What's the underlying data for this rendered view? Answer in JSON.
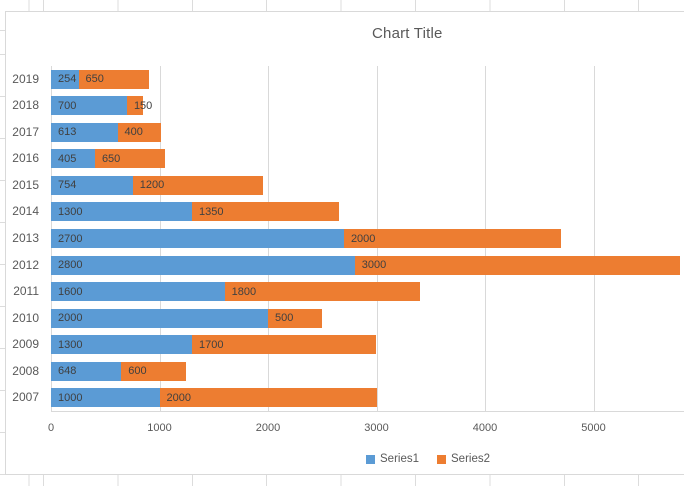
{
  "chart_data": {
    "type": "bar",
    "variant": "horizontal-stacked",
    "title": "Chart Title",
    "categories": [
      "2007",
      "2008",
      "2009",
      "2010",
      "2011",
      "2012",
      "2013",
      "2014",
      "2015",
      "2016",
      "2017",
      "2018",
      "2019"
    ],
    "series": [
      {
        "name": "Series1",
        "color": "#5B9BD5",
        "values": [
          1000,
          648,
          1300,
          2000,
          1600,
          2800,
          2700,
          1300,
          754,
          405,
          613,
          700,
          254
        ]
      },
      {
        "name": "Series2",
        "color": "#ED7D31",
        "values": [
          2000,
          600,
          1700,
          500,
          1800,
          3000,
          2000,
          1350,
          1200,
          650,
          400,
          150,
          650
        ]
      }
    ],
    "x_ticks": [
      0,
      1000,
      2000,
      3000,
      4000,
      5000
    ],
    "x_axis_max_visible": 5843,
    "grid": true,
    "legend_position": "bottom",
    "data_labels": "inside-base"
  },
  "colors": {
    "series1": "#5B9BD5",
    "series2": "#ED7D31",
    "gridline": "#D9D9D9",
    "chart_border": "#D9D9D9",
    "title_text": "#595959",
    "axis_text": "#595959",
    "data_label_text": "#404040",
    "sheet_grid": "#DCDCDC"
  }
}
